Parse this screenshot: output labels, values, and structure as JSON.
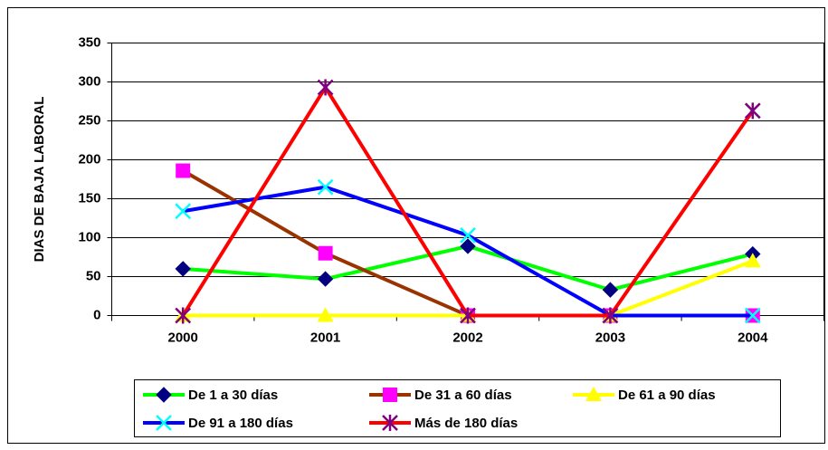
{
  "chart_data": {
    "type": "line",
    "y_label": "DIAS DE BAJA LABORAL",
    "categories": [
      "2000",
      "2001",
      "2002",
      "2003",
      "2004"
    ],
    "series": [
      {
        "name": "De 1 a 30 días",
        "color": "#00ff00",
        "marker": "diamond",
        "marker_color": "#000080",
        "values": [
          60,
          47,
          89,
          33,
          79
        ]
      },
      {
        "name": "De 31 a 60 días",
        "color": "#993300",
        "marker": "square",
        "marker_color": "#ff00ff",
        "values": [
          186,
          80,
          0,
          0,
          0
        ]
      },
      {
        "name": "De 61 a 90 días",
        "color": "#ffff00",
        "marker": "triangle",
        "marker_color": "#ffff00",
        "values": [
          0,
          0,
          0,
          0,
          70
        ]
      },
      {
        "name": "De 91 a 180 días",
        "color": "#0000ff",
        "marker": "x",
        "marker_color": "#00ffff",
        "values": [
          134,
          165,
          103,
          0,
          0
        ]
      },
      {
        "name": "Más de 180 días",
        "color": "#ff0000",
        "marker": "star",
        "marker_color": "#800080",
        "values": [
          0,
          293,
          0,
          0,
          263
        ]
      }
    ],
    "ylim": [
      0,
      350
    ],
    "yticks": [
      0,
      50,
      100,
      150,
      200,
      250,
      300,
      350
    ],
    "grid": true,
    "legend": "bottom"
  }
}
